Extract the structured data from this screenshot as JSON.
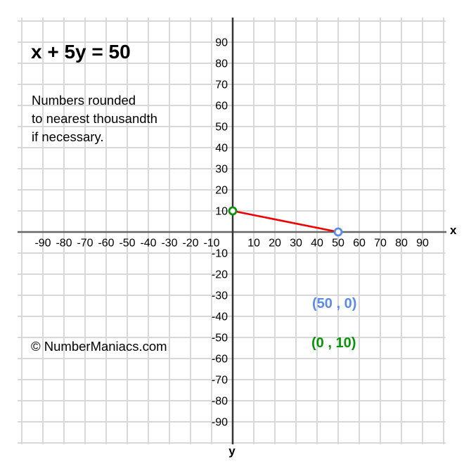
{
  "title": "x + 5y = 50",
  "note": {
    "lines": [
      "Numbers rounded",
      "to nearest thousandth",
      "if necessary."
    ]
  },
  "copyright": "© NumberManiacs.com",
  "chart_data": {
    "type": "line",
    "title": "x + 5y = 50",
    "xlabel": "x",
    "ylabel": "y",
    "xlim": [
      -100,
      100
    ],
    "ylim": [
      -100,
      100
    ],
    "grid": true,
    "grid_step": 10,
    "x_ticks": [
      -90,
      -80,
      -70,
      -60,
      -50,
      -40,
      -30,
      -20,
      -10,
      10,
      20,
      30,
      40,
      50,
      60,
      70,
      80,
      90
    ],
    "y_ticks": [
      90,
      80,
      70,
      60,
      50,
      40,
      30,
      20,
      10,
      -10,
      -20,
      -30,
      -40,
      -50,
      -60,
      -70,
      -80,
      -90
    ],
    "series": [
      {
        "name": "x + 5y = 50",
        "color": "#ee0000",
        "points": [
          {
            "x": 0,
            "y": 10
          },
          {
            "x": 50,
            "y": 0
          }
        ]
      }
    ],
    "intercepts": [
      {
        "x": 50,
        "y": 0,
        "label": "(50 , 0)",
        "color": "#5b8ae8",
        "name": "x-intercept"
      },
      {
        "x": 0,
        "y": 10,
        "label": "(0 , 10)",
        "color": "#0a930a",
        "name": "y-intercept"
      }
    ],
    "colors": {
      "background": "#ffffff",
      "grid": "#d8d8d8",
      "x_axis": "#666666",
      "y_axis": "#333333",
      "line": "#ee0000",
      "tick_text": "#000000"
    }
  }
}
